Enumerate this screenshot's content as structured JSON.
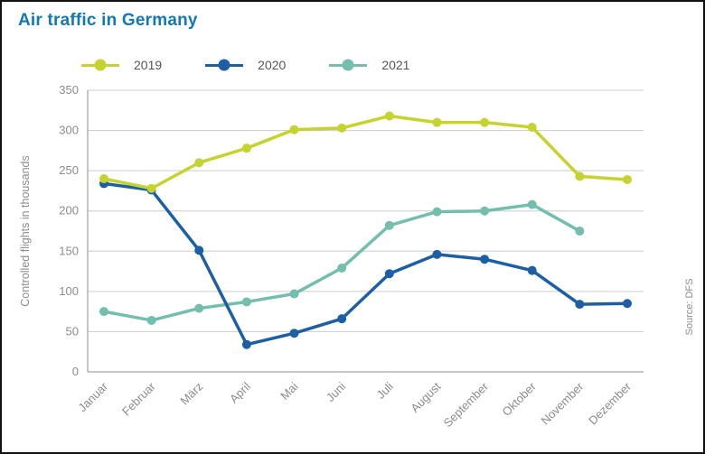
{
  "title": "Air traffic in Germany",
  "source": "Source: DFS",
  "colors": {
    "title": "#1278b6",
    "grid": "#cccccc",
    "axis": "#8c8c8c",
    "text": "#8c8c8c",
    "legend_text": "#555555",
    "frame_border": "#111111"
  },
  "chart_data": {
    "type": "line",
    "title": "Air traffic in Germany",
    "ylabel": "Controlled flights in thousands",
    "xlabel": "",
    "ylim": [
      0,
      350
    ],
    "ytick_step": 50,
    "grid": "horizontal",
    "legend_position": "top",
    "source": "Source: DFS",
    "categories": [
      "Januar",
      "Februar",
      "März",
      "April",
      "Mai",
      "Juni",
      "Juli",
      "August",
      "September",
      "Oktober",
      "November",
      "Dezember"
    ],
    "series": [
      {
        "name": "2019",
        "color": "#c6d22e",
        "values": [
          240,
          228,
          260,
          278,
          301,
          303,
          318,
          310,
          310,
          304,
          243,
          239
        ]
      },
      {
        "name": "2020",
        "color": "#1d5fa5",
        "values": [
          234,
          226,
          151,
          34,
          48,
          66,
          122,
          146,
          140,
          126,
          84,
          85
        ]
      },
      {
        "name": "2021",
        "color": "#73bead",
        "values": [
          75,
          64,
          79,
          87,
          97,
          129,
          182,
          199,
          200,
          208,
          175,
          null
        ]
      }
    ]
  }
}
